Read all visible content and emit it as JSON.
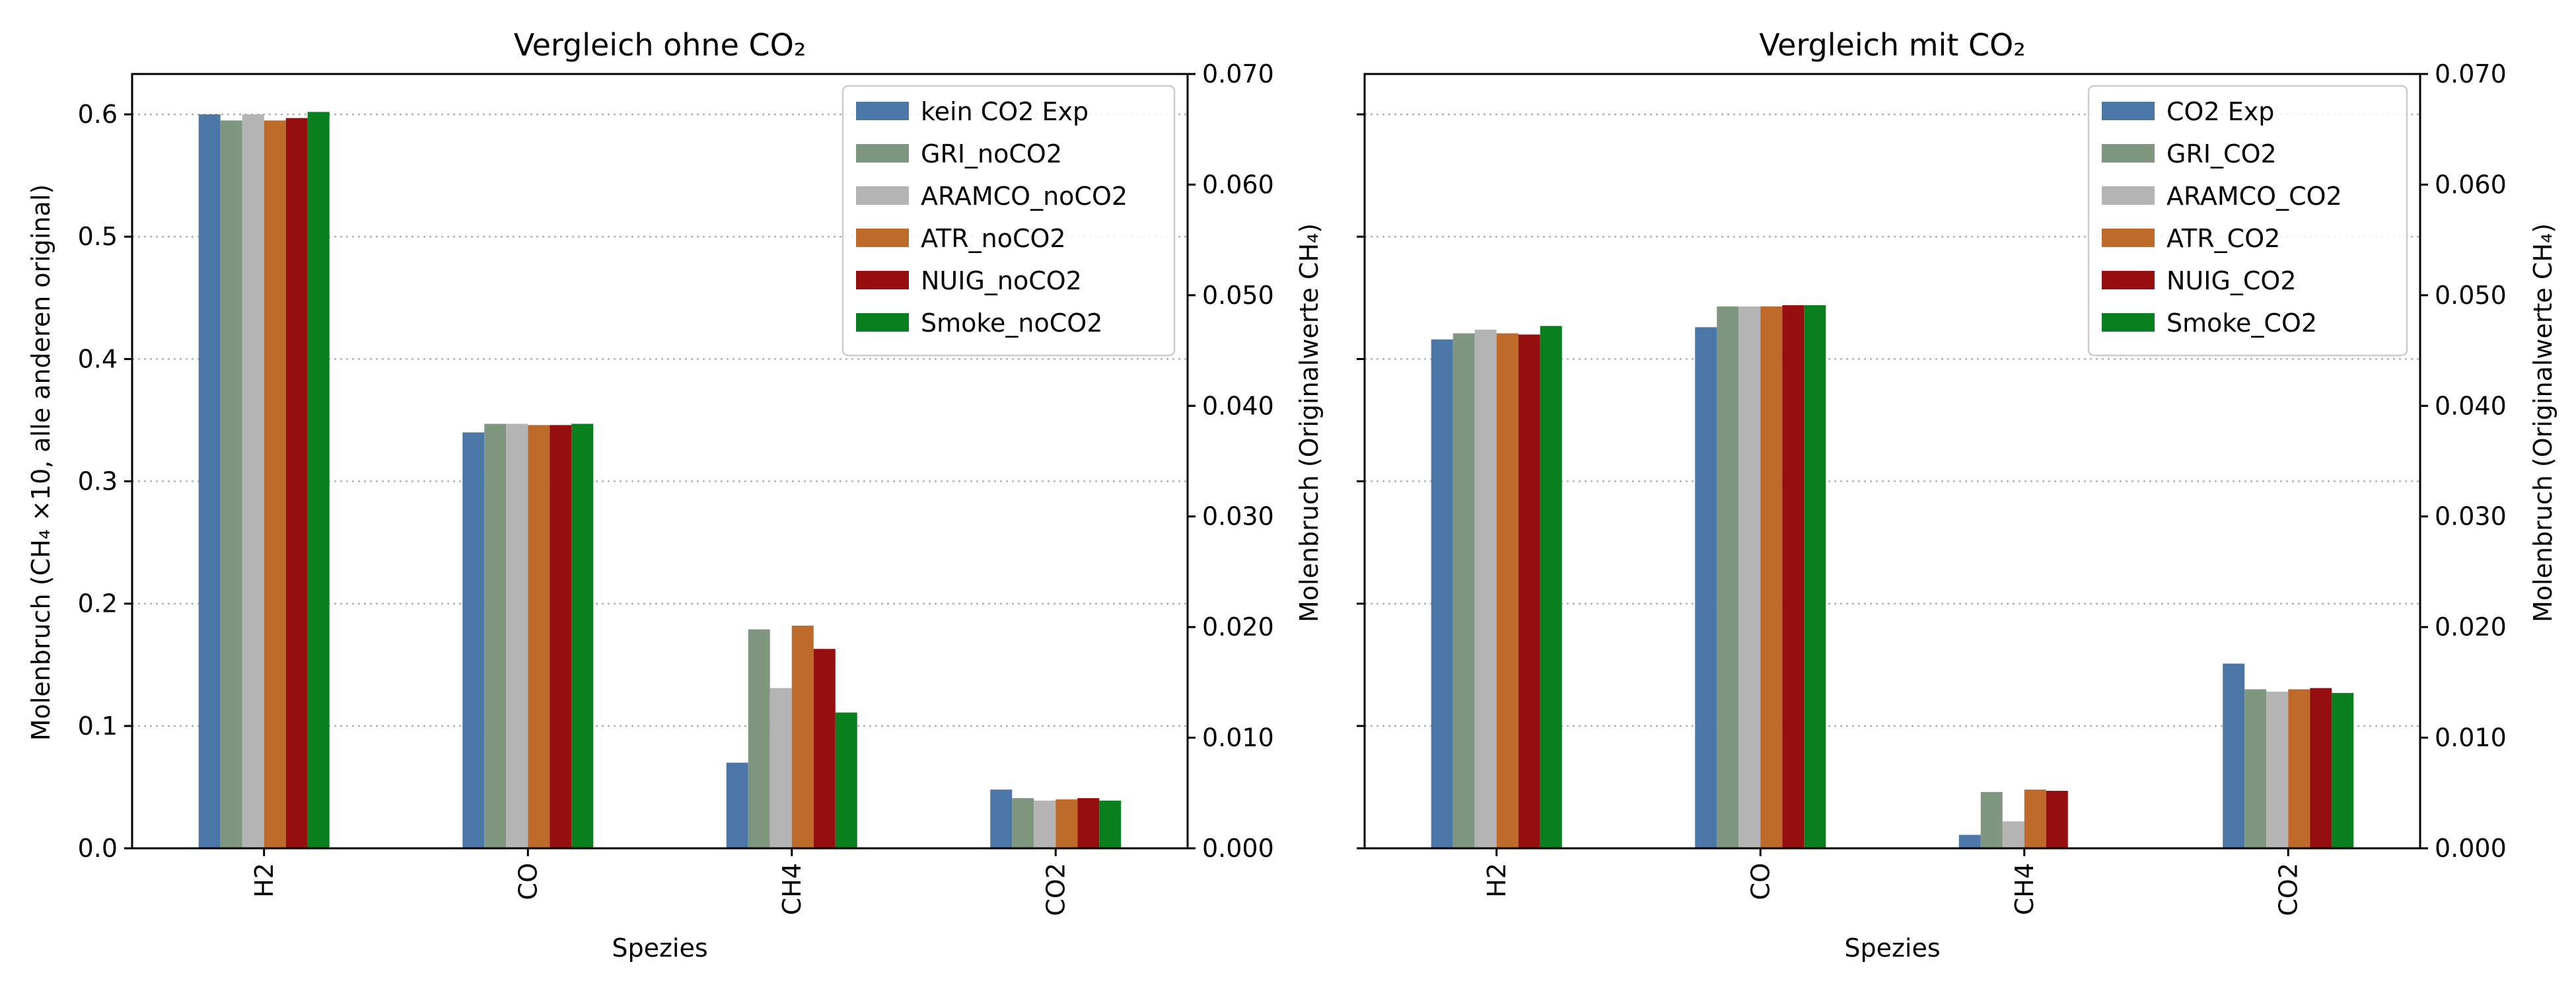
{
  "chart_data": [
    {
      "type": "bar",
      "title": "Vergleich ohne CO₂",
      "xlabel": "Spezies",
      "ylabel": "Molenbruch (CH₄ ×10, alle anderen original)",
      "ylabel_right": "Molenbruch (Originalwerte CH₄)",
      "categories": [
        "H2",
        "CO",
        "CH4",
        "CO2"
      ],
      "ylim": [
        0,
        0.633
      ],
      "yticks": [
        "0.0",
        "0.1",
        "0.2",
        "0.3",
        "0.4",
        "0.5",
        "0.6"
      ],
      "ylim_right": [
        0,
        0.07
      ],
      "yticks_right": [
        "0.000",
        "0.010",
        "0.020",
        "0.030",
        "0.040",
        "0.050",
        "0.060",
        "0.070"
      ],
      "grid": "horizontal dotted",
      "legend": "top-right",
      "series": [
        {
          "name": "kein CO2 Exp",
          "color": "#4a76a8",
          "values": [
            0.6,
            0.34,
            0.07,
            0.048
          ]
        },
        {
          "name": "GRI_noCO2",
          "color": "#7f977f",
          "values": [
            0.595,
            0.347,
            0.179,
            0.041
          ]
        },
        {
          "name": "ARAMCO_noCO2",
          "color": "#b4b4b4",
          "values": [
            0.6,
            0.347,
            0.131,
            0.039
          ]
        },
        {
          "name": "ATR_noCO2",
          "color": "#be6a2a",
          "values": [
            0.595,
            0.346,
            0.182,
            0.04
          ]
        },
        {
          "name": "NUIG_noCO2",
          "color": "#970e0e",
          "values": [
            0.597,
            0.346,
            0.163,
            0.041
          ]
        },
        {
          "name": "Smoke_noCO2",
          "color": "#0a7f1e",
          "values": [
            0.602,
            0.347,
            0.111,
            0.039
          ]
        }
      ]
    },
    {
      "type": "bar",
      "title": "Vergleich mit CO₂",
      "xlabel": "Spezies",
      "ylabel_right": "Molenbruch (Originalwerte CH₄)",
      "categories": [
        "H2",
        "CO",
        "CH4",
        "CO2"
      ],
      "ylim": [
        0,
        0.633
      ],
      "ylim_right": [
        0,
        0.07
      ],
      "yticks_right": [
        "0.000",
        "0.010",
        "0.020",
        "0.030",
        "0.040",
        "0.050",
        "0.060",
        "0.070"
      ],
      "grid": "horizontal dotted",
      "legend": "top-right",
      "series": [
        {
          "name": "CO2 Exp",
          "color": "#4a76a8",
          "values": [
            0.416,
            0.426,
            0.011,
            0.151
          ]
        },
        {
          "name": "GRI_CO2",
          "color": "#7f977f",
          "values": [
            0.421,
            0.443,
            0.046,
            0.13
          ]
        },
        {
          "name": "ARAMCO_CO2",
          "color": "#b4b4b4",
          "values": [
            0.424,
            0.443,
            0.022,
            0.128
          ]
        },
        {
          "name": "ATR_CO2",
          "color": "#be6a2a",
          "values": [
            0.421,
            0.443,
            0.048,
            0.13
          ]
        },
        {
          "name": "NUIG_CO2",
          "color": "#970e0e",
          "values": [
            0.42,
            0.444,
            0.047,
            0.131
          ]
        },
        {
          "name": "Smoke_CO2",
          "color": "#0a7f1e",
          "values": [
            0.427,
            0.444,
            null,
            0.127
          ]
        }
      ]
    }
  ]
}
